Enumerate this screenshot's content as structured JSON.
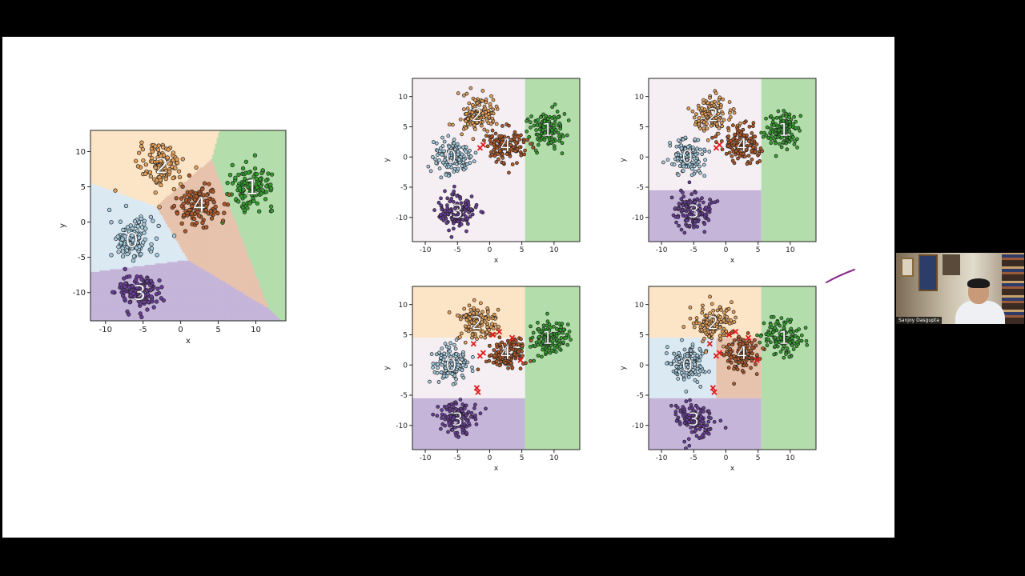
{
  "presenter": {
    "name": "Sanjoy Dasgupta"
  },
  "colors": {
    "region0": "#dbe9f3",
    "region1": "#b3deac",
    "region2": "#fce4c6",
    "region3": "#c5b5d9",
    "region4": "#e7c2ad",
    "region_unassigned": "#f5eff3",
    "points0": "#a6cee3",
    "points1": "#33a02c",
    "points2": "#e6a15a",
    "points3": "#6a3d9a",
    "points4": "#b15928",
    "misclassified": "#e31a1c",
    "annotation_pen": "#8a2a8a"
  },
  "chart_data": [
    {
      "id": "voronoi",
      "type": "scatter",
      "xlabel": "x",
      "ylabel": "y",
      "xlim": [
        -12,
        14
      ],
      "ylim": [
        -14,
        13
      ],
      "xticks": [
        -10,
        -5,
        0,
        5,
        10
      ],
      "yticks": [
        -10,
        -5,
        0,
        5,
        10
      ],
      "regions": "voronoi",
      "clusters": [
        {
          "label": "0",
          "center": [
            -6.5,
            -2.5
          ]
        },
        {
          "label": "1",
          "center": [
            9.5,
            5
          ]
        },
        {
          "label": "2",
          "center": [
            -2.5,
            8
          ]
        },
        {
          "label": "3",
          "center": [
            -5.5,
            -10
          ]
        },
        {
          "label": "4",
          "center": [
            2.5,
            2.5
          ]
        }
      ]
    },
    {
      "id": "tree-depth1",
      "type": "scatter",
      "xlabel": "x",
      "ylabel": "y",
      "xlim": [
        -12,
        14
      ],
      "ylim": [
        -14,
        13
      ],
      "xticks": [
        -10,
        -5,
        0,
        5,
        10
      ],
      "yticks": [
        -10,
        -5,
        0,
        5,
        10
      ],
      "regions": [
        {
          "x0": -12,
          "x1": 5.5,
          "y0": -14,
          "y1": 13,
          "cls": "u"
        },
        {
          "x0": 5.5,
          "x1": 14,
          "y0": -14,
          "y1": 13,
          "cls": "1"
        }
      ],
      "clusters": [
        {
          "label": "0",
          "center": [
            -6,
            0
          ]
        },
        {
          "label": "1",
          "center": [
            9,
            4.5
          ]
        },
        {
          "label": "2",
          "center": [
            -2,
            7
          ]
        },
        {
          "label": "3",
          "center": [
            -5,
            -9
          ]
        },
        {
          "label": "4",
          "center": [
            2.5,
            2
          ]
        }
      ]
    },
    {
      "id": "tree-depth2",
      "type": "scatter",
      "xlabel": "x",
      "ylabel": "y",
      "xlim": [
        -12,
        14
      ],
      "ylim": [
        -14,
        13
      ],
      "xticks": [
        -10,
        -5,
        0,
        5,
        10
      ],
      "yticks": [
        -10,
        -5,
        0,
        5,
        10
      ],
      "regions": [
        {
          "x0": -12,
          "x1": 5.5,
          "y0": -5.5,
          "y1": 13,
          "cls": "u"
        },
        {
          "x0": -12,
          "x1": 5.5,
          "y0": -14,
          "y1": -5.5,
          "cls": "3"
        },
        {
          "x0": 5.5,
          "x1": 14,
          "y0": -14,
          "y1": 13,
          "cls": "1"
        }
      ],
      "clusters": [
        {
          "label": "0",
          "center": [
            -6,
            0
          ]
        },
        {
          "label": "1",
          "center": [
            9,
            4.5
          ]
        },
        {
          "label": "2",
          "center": [
            -2,
            7
          ]
        },
        {
          "label": "3",
          "center": [
            -5,
            -9
          ]
        },
        {
          "label": "4",
          "center": [
            2.5,
            2
          ]
        }
      ]
    },
    {
      "id": "tree-depth3",
      "type": "scatter",
      "xlabel": "x",
      "ylabel": "y",
      "xlim": [
        -12,
        14
      ],
      "ylim": [
        -14,
        13
      ],
      "xticks": [
        -10,
        -5,
        0,
        5,
        10
      ],
      "yticks": [
        -10,
        -5,
        0,
        5,
        10
      ],
      "regions": [
        {
          "x0": -12,
          "x1": 5.5,
          "y0": 4.5,
          "y1": 13,
          "cls": "2"
        },
        {
          "x0": -12,
          "x1": 5.5,
          "y0": -5.5,
          "y1": 4.5,
          "cls": "u"
        },
        {
          "x0": -12,
          "x1": 5.5,
          "y0": -14,
          "y1": -5.5,
          "cls": "3"
        },
        {
          "x0": 5.5,
          "x1": 14,
          "y0": -14,
          "y1": 13,
          "cls": "1"
        }
      ],
      "clusters": [
        {
          "label": "0",
          "center": [
            -6,
            0
          ]
        },
        {
          "label": "1",
          "center": [
            9,
            4.5
          ]
        },
        {
          "label": "2",
          "center": [
            -2,
            7
          ]
        },
        {
          "label": "3",
          "center": [
            -5,
            -9
          ]
        },
        {
          "label": "4",
          "center": [
            2.5,
            2
          ]
        }
      ]
    },
    {
      "id": "tree-depth4",
      "type": "scatter",
      "xlabel": "x",
      "ylabel": "y",
      "xlim": [
        -12,
        14
      ],
      "ylim": [
        -14,
        13
      ],
      "xticks": [
        -10,
        -5,
        0,
        5,
        10
      ],
      "yticks": [
        -10,
        -5,
        0,
        5,
        10
      ],
      "regions": [
        {
          "x0": -12,
          "x1": 5.5,
          "y0": 4.5,
          "y1": 13,
          "cls": "2"
        },
        {
          "x0": -12,
          "x1": -1.5,
          "y0": -5.5,
          "y1": 4.5,
          "cls": "0"
        },
        {
          "x0": -1.5,
          "x1": 5.5,
          "y0": -5.5,
          "y1": 4.5,
          "cls": "4"
        },
        {
          "x0": -12,
          "x1": 5.5,
          "y0": -14,
          "y1": -5.5,
          "cls": "3"
        },
        {
          "x0": 5.5,
          "x1": 14,
          "y0": -14,
          "y1": 13,
          "cls": "1"
        }
      ],
      "clusters": [
        {
          "label": "0",
          "center": [
            -6,
            0
          ]
        },
        {
          "label": "1",
          "center": [
            9,
            4.5
          ]
        },
        {
          "label": "2",
          "center": [
            -2,
            7
          ]
        },
        {
          "label": "3",
          "center": [
            -5,
            -9
          ]
        },
        {
          "label": "4",
          "center": [
            2.5,
            2
          ]
        }
      ]
    }
  ]
}
